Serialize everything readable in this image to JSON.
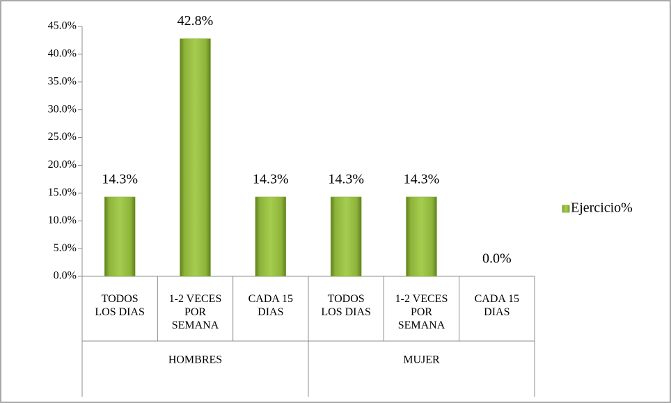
{
  "chart_data": {
    "type": "bar",
    "groups": [
      {
        "name": "HOMBRES",
        "categories": [
          "TODOS LOS DIAS",
          "1-2 VECES POR SEMANA",
          "CADA 15 DIAS"
        ]
      },
      {
        "name": "MUJER",
        "categories": [
          "TODOS LOS DIAS",
          "1-2 VECES POR SEMANA",
          "CADA 15 DIAS"
        ]
      }
    ],
    "series": [
      {
        "name": "Ejercicio%",
        "color": "#8db33a",
        "values": [
          14.3,
          42.8,
          14.3,
          14.3,
          14.3,
          0.0
        ],
        "value_labels": [
          "14.3%",
          "42.8%",
          "14.3%",
          "14.3%",
          "14.3%",
          "0.0%"
        ]
      }
    ],
    "ylim": [
      0,
      45
    ],
    "yticks": [
      {
        "value": 0,
        "label": "0.0%"
      },
      {
        "value": 5,
        "label": "5.0%"
      },
      {
        "value": 10,
        "label": "10.0%"
      },
      {
        "value": 15,
        "label": "15.0%"
      },
      {
        "value": 20,
        "label": "20.0%"
      },
      {
        "value": 25,
        "label": "25.0%"
      },
      {
        "value": 30,
        "label": "30.0%"
      },
      {
        "value": 35,
        "label": "35.0%"
      },
      {
        "value": 40,
        "label": "40.0%"
      },
      {
        "value": 45,
        "label": "45.0%"
      }
    ],
    "legend": "right"
  }
}
